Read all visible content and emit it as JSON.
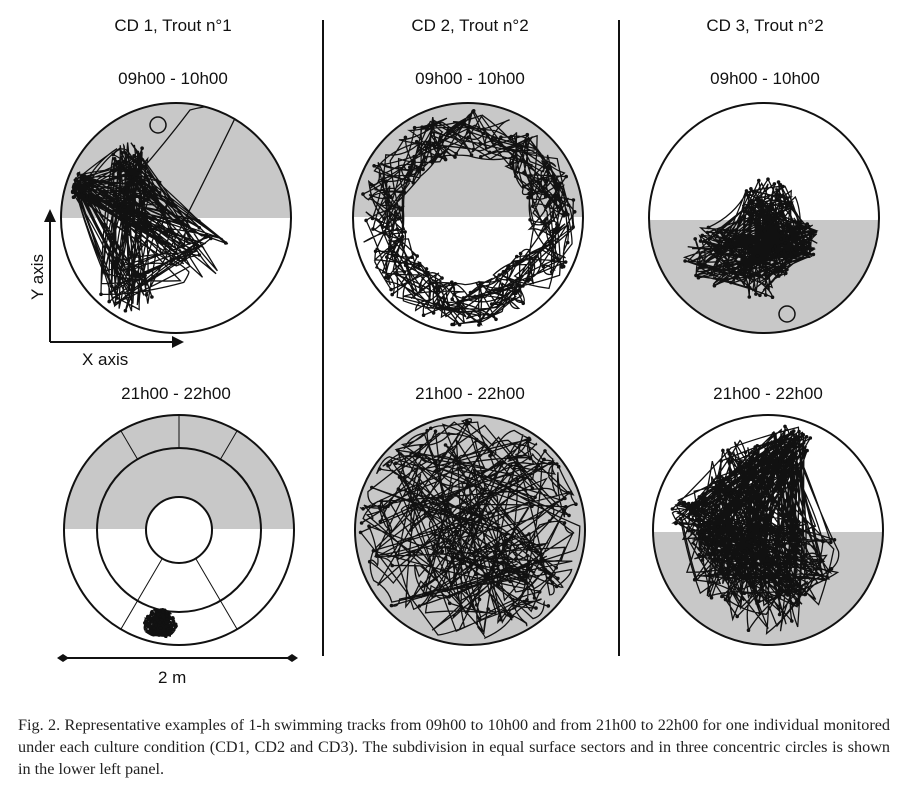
{
  "columns": [
    {
      "title": "CD 1, Trout n°1",
      "day_time": "09h00 - 10h00",
      "night_time": "21h00 - 22h00"
    },
    {
      "title": "CD 2, Trout n°2",
      "day_time": "09h00 - 10h00",
      "night_time": "21h00 - 22h00"
    },
    {
      "title": "CD 3, Trout n°2",
      "day_time": "09h00 - 10h00",
      "night_time": "21h00 - 22h00"
    }
  ],
  "axes": {
    "y_label": "Y axis",
    "x_label": "X axis"
  },
  "scale": {
    "label": "2 m"
  },
  "caption": "Fig. 2. Representative examples of 1-h swimming tracks from 09h00 to 10h00 and from 21h00 to 22h00 for one individual monitored under each culture condition (CD1, CD2 and CD3). The subdivision in equal surface sectors and in three concentric circles is shown in the lower left panel.",
  "colors": {
    "shade": "#c8c8c8",
    "line": "#111111"
  }
}
